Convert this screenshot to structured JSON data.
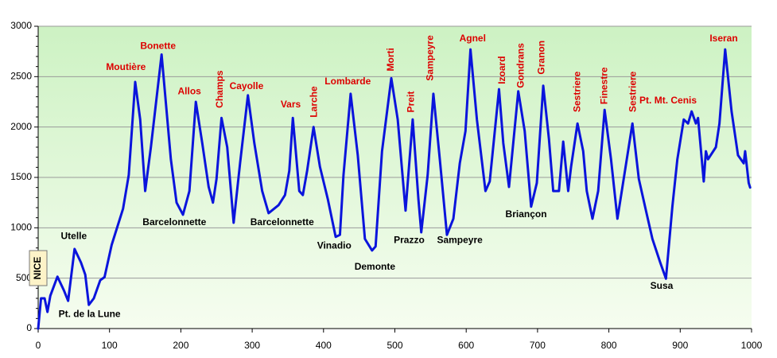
{
  "chart_data": {
    "type": "line",
    "xlim": [
      0,
      1000
    ],
    "ylim": [
      0,
      3000
    ],
    "xticks": [
      0,
      100,
      200,
      300,
      400,
      500,
      600,
      700,
      800,
      900,
      1000
    ],
    "yticks": [
      0,
      500,
      1000,
      1500,
      2000,
      2500,
      3000
    ],
    "grid": true,
    "x": [
      0,
      4,
      9,
      13,
      17,
      27,
      36,
      42,
      51,
      60,
      66,
      71,
      78,
      87,
      93,
      103,
      119,
      127,
      136,
      143,
      150,
      158,
      173,
      186,
      194,
      203,
      212,
      221,
      230,
      239,
      245,
      250,
      257,
      265,
      274,
      283,
      294,
      303,
      314,
      323,
      337,
      346,
      352,
      357,
      366,
      371,
      377,
      386,
      395,
      406,
      417,
      423,
      428,
      438,
      448,
      458,
      468,
      473,
      482,
      495,
      504,
      515,
      525,
      533,
      537,
      546,
      554,
      563,
      573,
      582,
      591,
      599,
      606,
      615,
      627,
      633,
      646,
      652,
      660,
      673,
      682,
      691,
      699,
      708,
      716,
      722,
      730,
      736,
      743,
      747,
      756,
      764,
      769,
      777,
      785,
      794,
      803,
      812,
      819,
      833,
      842,
      852,
      861,
      872,
      880,
      889,
      896,
      905,
      911,
      916,
      922,
      925,
      933,
      936,
      939,
      950,
      955,
      963,
      972,
      981,
      989,
      991,
      996,
      998
    ],
    "series": [
      {
        "color": "#0a14dc",
        "values": [
          0,
          300,
          300,
          165,
          325,
          515,
          380,
          275,
          790,
          655,
          535,
          235,
          300,
          480,
          510,
          830,
          1190,
          1525,
          2447,
          2075,
          1365,
          1800,
          2720,
          1680,
          1250,
          1130,
          1365,
          2250,
          1840,
          1405,
          1250,
          1485,
          2090,
          1800,
          1050,
          1640,
          2315,
          1840,
          1365,
          1145,
          1225,
          1325,
          1565,
          2090,
          1365,
          1325,
          1565,
          2000,
          1605,
          1285,
          910,
          930,
          1525,
          2330,
          1720,
          890,
          775,
          815,
          1760,
          2485,
          2075,
          1170,
          2075,
          1285,
          955,
          1525,
          2330,
          1680,
          930,
          1090,
          1640,
          1960,
          2770,
          2075,
          1365,
          1460,
          2375,
          1840,
          1405,
          2355,
          1960,
          1210,
          1445,
          2410,
          1880,
          1365,
          1365,
          1855,
          1365,
          1605,
          2035,
          1760,
          1365,
          1090,
          1365,
          2170,
          1680,
          1090,
          1405,
          2035,
          1485,
          1170,
          890,
          655,
          495,
          1210,
          1680,
          2075,
          2035,
          2155,
          2035,
          2090,
          1460,
          1760,
          1680,
          1800,
          2035,
          2770,
          2155,
          1720,
          1640,
          1760,
          1445,
          1400
        ]
      }
    ],
    "start_label": {
      "text": "NICE",
      "x": 0,
      "y": 600
    },
    "annotations": [
      {
        "text": "Moutière",
        "x": 123,
        "y": 2590,
        "color": "#dd0000"
      },
      {
        "text": "Bonette",
        "x": 168,
        "y": 2800,
        "color": "#dd0000"
      },
      {
        "text": "Allos",
        "x": 212,
        "y": 2350,
        "color": "#dd0000"
      },
      {
        "text": "Champs",
        "x": 255,
        "y": 2375,
        "color": "#dd0000",
        "rotated": true
      },
      {
        "text": "Cayolle",
        "x": 292,
        "y": 2400,
        "color": "#dd0000"
      },
      {
        "text": "Vars",
        "x": 354,
        "y": 2220,
        "color": "#dd0000"
      },
      {
        "text": "Larche",
        "x": 387,
        "y": 2250,
        "color": "#dd0000",
        "rotated": true
      },
      {
        "text": "Lombarde",
        "x": 434,
        "y": 2450,
        "color": "#dd0000"
      },
      {
        "text": "Morti",
        "x": 495,
        "y": 2670,
        "color": "#dd0000",
        "rotated": true
      },
      {
        "text": "Preit",
        "x": 523,
        "y": 2250,
        "color": "#dd0000",
        "rotated": true
      },
      {
        "text": "Sampeyre",
        "x": 550,
        "y": 2685,
        "color": "#dd0000",
        "rotated": true
      },
      {
        "text": "Agnel",
        "x": 609,
        "y": 2875,
        "color": "#dd0000"
      },
      {
        "text": "Izoard",
        "x": 651,
        "y": 2565,
        "color": "#dd0000",
        "rotated": true
      },
      {
        "text": "Gondrans",
        "x": 677,
        "y": 2610,
        "color": "#dd0000",
        "rotated": true
      },
      {
        "text": "Granon",
        "x": 706,
        "y": 2690,
        "color": "#dd0000",
        "rotated": true
      },
      {
        "text": "Sestriere",
        "x": 756,
        "y": 2350,
        "color": "#dd0000",
        "rotated": true
      },
      {
        "text": "Finestre",
        "x": 794,
        "y": 2410,
        "color": "#dd0000",
        "rotated": true
      },
      {
        "text": "Sestriere",
        "x": 834,
        "y": 2350,
        "color": "#dd0000",
        "rotated": true
      },
      {
        "text": "Pt. Mt. Cenis",
        "x": 883,
        "y": 2260,
        "color": "#dd0000"
      },
      {
        "text": "Iseran",
        "x": 961,
        "y": 2875,
        "color": "#dd0000"
      },
      {
        "text": "Utelle",
        "x": 50,
        "y": 915,
        "color": "#000000"
      },
      {
        "text": "Pt. de la Lune",
        "x": 72,
        "y": 140,
        "color": "#000000"
      },
      {
        "text": "Barcelonnette",
        "x": 191,
        "y": 1050,
        "color": "#000000"
      },
      {
        "text": "Barcelonnette",
        "x": 342,
        "y": 1050,
        "color": "#000000"
      },
      {
        "text": "Vinadio",
        "x": 415,
        "y": 820,
        "color": "#000000"
      },
      {
        "text": "Demonte",
        "x": 472,
        "y": 610,
        "color": "#000000"
      },
      {
        "text": "Prazzo",
        "x": 520,
        "y": 875,
        "color": "#000000"
      },
      {
        "text": "Sampeyre",
        "x": 591,
        "y": 875,
        "color": "#000000"
      },
      {
        "text": "Briançon",
        "x": 684,
        "y": 1130,
        "color": "#000000"
      },
      {
        "text": "Susa",
        "x": 874,
        "y": 420,
        "color": "#000000"
      }
    ]
  }
}
